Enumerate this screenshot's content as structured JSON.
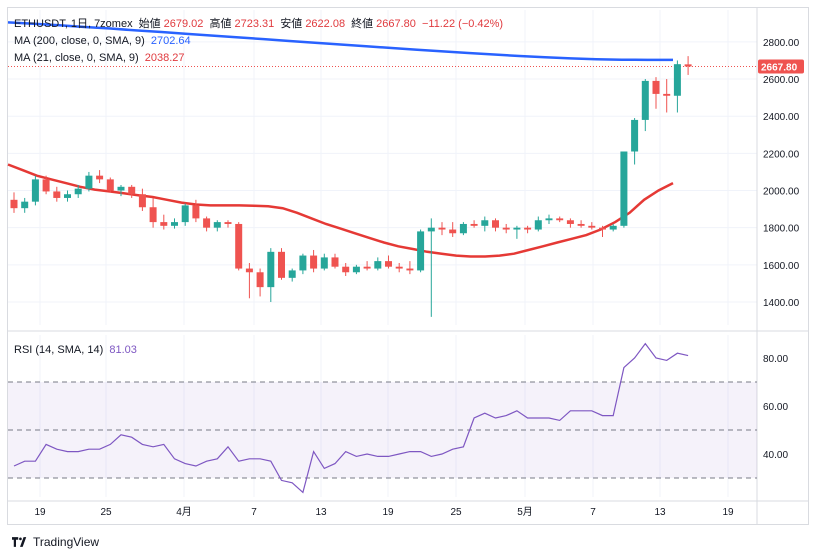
{
  "header": {
    "symbol": "ETHUSDT, 1日, 7zomex",
    "open_label": "始値",
    "open": "2679.02",
    "high_label": "高値",
    "high": "2723.31",
    "low_label": "安値",
    "low": "2622.08",
    "close_label": "終値",
    "close": "2667.80",
    "change": "−11.22 (−0.42%)"
  },
  "legend": {
    "ma200_label": "MA (200, close, 0, SMA, 9)",
    "ma200_value": "2702.64",
    "ma21_label": "MA (21, close, 0, SMA, 9)",
    "ma21_value": "2038.27",
    "rsi_label": "RSI (14, SMA, 14)",
    "rsi_value": "81.03"
  },
  "footer": {
    "brand": "TradingView"
  },
  "colors": {
    "up": "#26a69a",
    "down": "#ef5350",
    "ma200": "#2962ff",
    "ma21": "#e53935",
    "rsi": "#7e57c2"
  },
  "chart_data": [
    {
      "type": "candlestick",
      "price_ticks": [
        1400,
        1600,
        1800,
        2000,
        2200,
        2400,
        2600,
        2800
      ],
      "x_ticks": [
        "19",
        "25",
        "4月",
        "7",
        "13",
        "19",
        "25",
        "5月",
        "7",
        "13",
        "19"
      ],
      "last_price": "2667.80",
      "candles": [
        {
          "o": 1950,
          "h": 1990,
          "l": 1880,
          "c": 1905
        },
        {
          "o": 1905,
          "h": 1960,
          "l": 1880,
          "c": 1940
        },
        {
          "o": 1940,
          "h": 2080,
          "l": 1920,
          "c": 2060
        },
        {
          "o": 2060,
          "h": 2080,
          "l": 1980,
          "c": 1995
        },
        {
          "o": 1995,
          "h": 2020,
          "l": 1940,
          "c": 1960
        },
        {
          "o": 1960,
          "h": 2000,
          "l": 1940,
          "c": 1980
        },
        {
          "o": 1980,
          "h": 2030,
          "l": 1960,
          "c": 2010
        },
        {
          "o": 2010,
          "h": 2100,
          "l": 1995,
          "c": 2080
        },
        {
          "o": 2080,
          "h": 2110,
          "l": 2040,
          "c": 2060
        },
        {
          "o": 2060,
          "h": 2070,
          "l": 1990,
          "c": 2000
        },
        {
          "o": 2000,
          "h": 2030,
          "l": 1970,
          "c": 2020
        },
        {
          "o": 2020,
          "h": 2030,
          "l": 1960,
          "c": 1980
        },
        {
          "o": 1980,
          "h": 2010,
          "l": 1890,
          "c": 1910
        },
        {
          "o": 1910,
          "h": 1960,
          "l": 1800,
          "c": 1830
        },
        {
          "o": 1830,
          "h": 1870,
          "l": 1790,
          "c": 1810
        },
        {
          "o": 1810,
          "h": 1850,
          "l": 1795,
          "c": 1830
        },
        {
          "o": 1830,
          "h": 1930,
          "l": 1810,
          "c": 1920
        },
        {
          "o": 1920,
          "h": 1950,
          "l": 1830,
          "c": 1850
        },
        {
          "o": 1850,
          "h": 1860,
          "l": 1780,
          "c": 1800
        },
        {
          "o": 1800,
          "h": 1840,
          "l": 1780,
          "c": 1830
        },
        {
          "o": 1830,
          "h": 1840,
          "l": 1800,
          "c": 1820
        },
        {
          "o": 1820,
          "h": 1830,
          "l": 1570,
          "c": 1580
        },
        {
          "o": 1580,
          "h": 1610,
          "l": 1420,
          "c": 1560
        },
        {
          "o": 1560,
          "h": 1580,
          "l": 1430,
          "c": 1480
        },
        {
          "o": 1480,
          "h": 1690,
          "l": 1400,
          "c": 1670
        },
        {
          "o": 1670,
          "h": 1690,
          "l": 1520,
          "c": 1530
        },
        {
          "o": 1530,
          "h": 1580,
          "l": 1510,
          "c": 1570
        },
        {
          "o": 1570,
          "h": 1660,
          "l": 1550,
          "c": 1650
        },
        {
          "o": 1650,
          "h": 1680,
          "l": 1560,
          "c": 1580
        },
        {
          "o": 1580,
          "h": 1660,
          "l": 1570,
          "c": 1640
        },
        {
          "o": 1640,
          "h": 1660,
          "l": 1580,
          "c": 1590
        },
        {
          "o": 1590,
          "h": 1610,
          "l": 1540,
          "c": 1560
        },
        {
          "o": 1560,
          "h": 1600,
          "l": 1550,
          "c": 1590
        },
        {
          "o": 1590,
          "h": 1620,
          "l": 1570,
          "c": 1580
        },
        {
          "o": 1580,
          "h": 1640,
          "l": 1570,
          "c": 1620
        },
        {
          "o": 1620,
          "h": 1650,
          "l": 1580,
          "c": 1590
        },
        {
          "o": 1590,
          "h": 1610,
          "l": 1560,
          "c": 1580
        },
        {
          "o": 1580,
          "h": 1620,
          "l": 1550,
          "c": 1570
        },
        {
          "o": 1570,
          "h": 1790,
          "l": 1560,
          "c": 1780
        },
        {
          "o": 1780,
          "h": 1850,
          "l": 1320,
          "c": 1800
        },
        {
          "o": 1800,
          "h": 1830,
          "l": 1760,
          "c": 1790
        },
        {
          "o": 1790,
          "h": 1830,
          "l": 1750,
          "c": 1770
        },
        {
          "o": 1770,
          "h": 1830,
          "l": 1760,
          "c": 1820
        },
        {
          "o": 1820,
          "h": 1840,
          "l": 1800,
          "c": 1810
        },
        {
          "o": 1810,
          "h": 1860,
          "l": 1780,
          "c": 1840
        },
        {
          "o": 1840,
          "h": 1850,
          "l": 1780,
          "c": 1800
        },
        {
          "o": 1800,
          "h": 1820,
          "l": 1770,
          "c": 1790
        },
        {
          "o": 1790,
          "h": 1810,
          "l": 1740,
          "c": 1800
        },
        {
          "o": 1800,
          "h": 1810,
          "l": 1770,
          "c": 1790
        },
        {
          "o": 1790,
          "h": 1860,
          "l": 1780,
          "c": 1840
        },
        {
          "o": 1840,
          "h": 1870,
          "l": 1820,
          "c": 1850
        },
        {
          "o": 1850,
          "h": 1860,
          "l": 1830,
          "c": 1840
        },
        {
          "o": 1840,
          "h": 1850,
          "l": 1800,
          "c": 1820
        },
        {
          "o": 1820,
          "h": 1840,
          "l": 1800,
          "c": 1810
        },
        {
          "o": 1810,
          "h": 1830,
          "l": 1790,
          "c": 1800
        },
        {
          "o": 1800,
          "h": 1810,
          "l": 1750,
          "c": 1790
        },
        {
          "o": 1790,
          "h": 1820,
          "l": 1780,
          "c": 1810
        },
        {
          "o": 1810,
          "h": 2200,
          "l": 1800,
          "c": 2210
        },
        {
          "o": 2210,
          "h": 2390,
          "l": 2140,
          "c": 2380
        },
        {
          "o": 2380,
          "h": 2600,
          "l": 2320,
          "c": 2590
        },
        {
          "o": 2590,
          "h": 2610,
          "l": 2440,
          "c": 2520
        },
        {
          "o": 2520,
          "h": 2600,
          "l": 2420,
          "c": 2510
        },
        {
          "o": 2510,
          "h": 2700,
          "l": 2420,
          "c": 2680
        },
        {
          "o": 2679.02,
          "h": 2723.31,
          "l": 2622.08,
          "c": 2667.8
        }
      ],
      "ma21": [
        2140,
        2110,
        2080,
        2060,
        2040,
        2020,
        2005,
        1995,
        1985,
        1975,
        1965,
        1950,
        1935,
        1925,
        1920,
        1920,
        1920,
        1918,
        1915,
        1905,
        1880,
        1850,
        1820,
        1795,
        1770,
        1745,
        1720,
        1700,
        1685,
        1670,
        1660,
        1650,
        1645,
        1645,
        1650,
        1660,
        1680,
        1700,
        1720,
        1740,
        1760,
        1790,
        1830,
        1880,
        1950,
        2000,
        2040
      ],
      "ma21_x_start": 0,
      "ma200_values": [
        2905,
        2898,
        2890,
        2880,
        2872,
        2862,
        2853,
        2843,
        2834,
        2824,
        2815,
        2805,
        2795,
        2786,
        2776,
        2767,
        2758,
        2749,
        2740,
        2732,
        2724,
        2717,
        2711,
        2707,
        2704,
        2703,
        2703
      ],
      "rsi_ticks": [
        40,
        60,
        80
      ],
      "rsi_bands": [
        30,
        50,
        70
      ],
      "rsi": [
        35,
        37,
        37,
        44,
        42,
        41,
        41,
        42,
        42,
        44,
        48,
        47,
        44,
        43,
        44,
        38,
        36,
        35,
        37,
        38,
        43,
        37,
        38,
        38,
        37,
        29,
        28,
        24,
        41,
        34,
        36,
        41,
        39,
        40,
        39,
        39,
        40,
        41,
        41,
        39,
        40,
        42,
        43,
        55,
        57,
        55,
        56,
        58,
        55,
        55,
        55,
        54,
        58,
        58,
        58,
        56,
        56,
        76,
        80,
        86,
        80,
        79,
        82,
        81
      ]
    }
  ]
}
